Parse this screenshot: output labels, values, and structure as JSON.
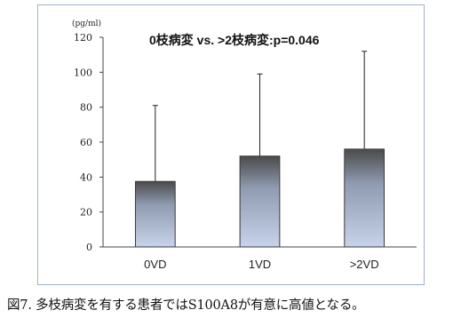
{
  "chart_data": {
    "type": "bar",
    "categories": [
      "0VD",
      "1VD",
      ">2VD"
    ],
    "values": [
      37.5,
      52,
      56
    ],
    "error_upper": [
      81,
      99,
      112
    ],
    "ylim": [
      0,
      120
    ],
    "yticks": [
      0,
      20,
      40,
      60,
      80,
      100,
      120
    ],
    "unit_label": "(pg/ml)",
    "annotation": "0枝病変 vs. >2枝病変:p=0.046",
    "bar_gradient": [
      "#4a4a4a",
      "#8f9bb0",
      "#c7d3ea"
    ]
  },
  "caption": "図7. 多枝病変を有する患者ではS100A8が有意に高値となる。"
}
